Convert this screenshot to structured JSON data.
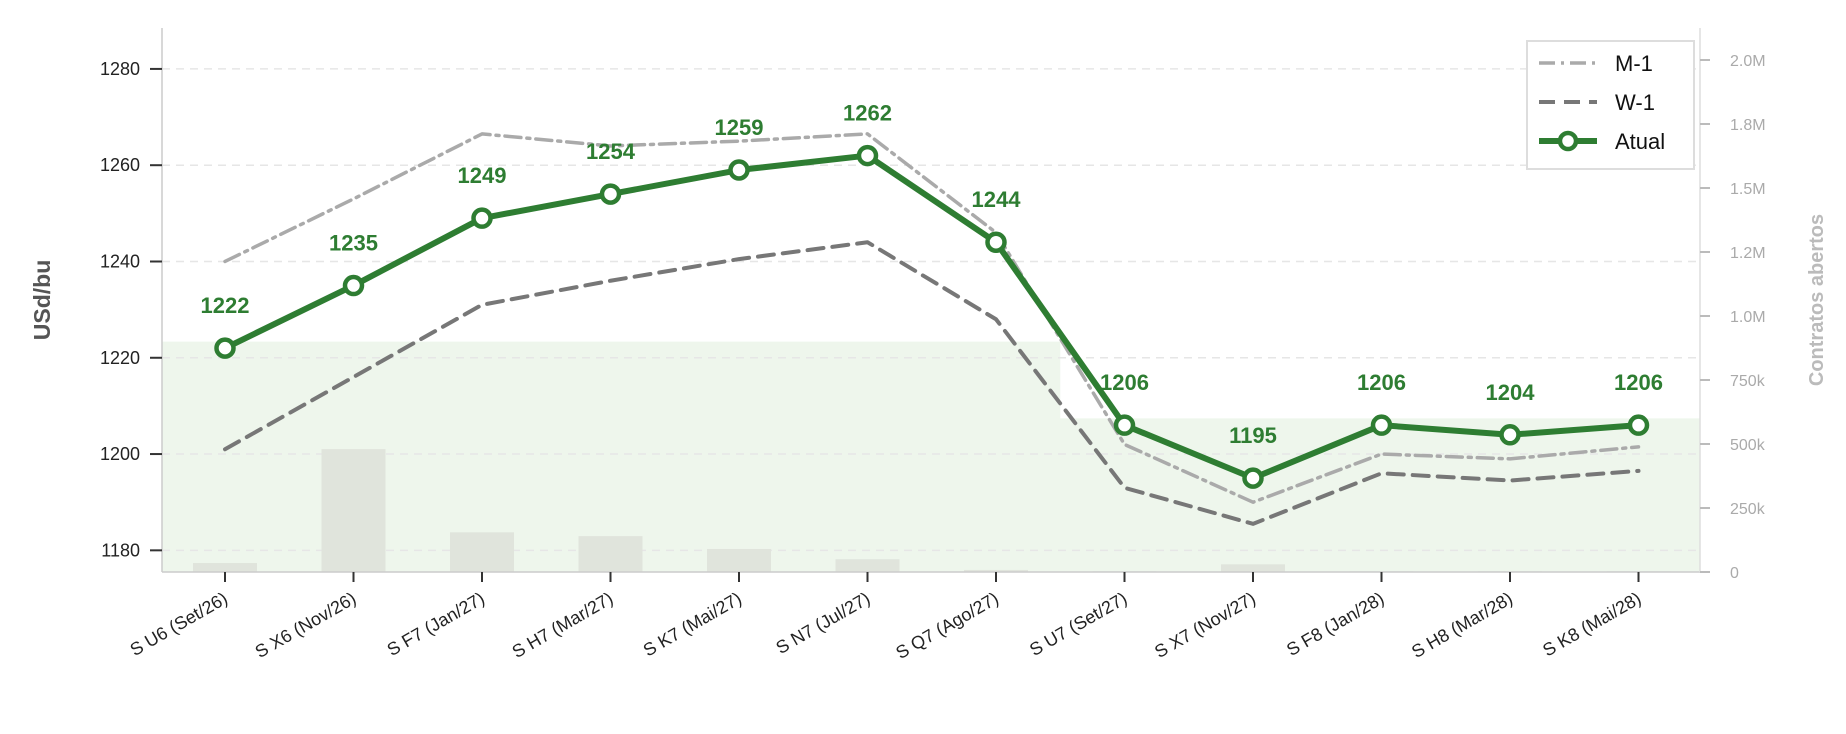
{
  "chart_data": {
    "type": "line",
    "title": "",
    "categories": [
      "S U6 (Set/26)",
      "S X6 (Nov/26)",
      "S F7 (Jan/27)",
      "S H7 (Mar/27)",
      "S K7 (Mai/27)",
      "S N7 (Jul/27)",
      "S Q7 (Ago/27)",
      "S U7 (Set/27)",
      "S X7 (Nov/27)",
      "S F8 (Jan/28)",
      "S H8 (Mar/28)",
      "S K8 (Mai/28)"
    ],
    "ylabel": "USd/bu",
    "y2label": "Contratos abertos",
    "ylim": [
      1175.5,
      1288.5
    ],
    "y2lim": [
      0,
      2125000
    ],
    "yticks": [
      1180,
      1200,
      1220,
      1240,
      1260,
      1280
    ],
    "y2ticks": [
      0,
      250000,
      500000,
      750000,
      1000000,
      1250000,
      1500000,
      1750000,
      2000000
    ],
    "y2ticklabels": [
      "0",
      "250k",
      "500k",
      "750k",
      "1.0M",
      "1.2M",
      "1.5M",
      "1.8M",
      "2.0M"
    ],
    "grid": true,
    "legend_position": "top-right",
    "colors": {
      "atual": "#2e7d32",
      "m1": "#aaaaaa",
      "w1": "#777777",
      "bars": "#e0e4dc",
      "fill": "#eef6ec"
    },
    "series": [
      {
        "name": "M-1",
        "style": "dashdot",
        "values": [
          1240,
          1253,
          1266.5,
          1264,
          1265,
          1266.5,
          1246,
          1202,
          1190,
          1200,
          1199,
          1201.5
        ]
      },
      {
        "name": "W-1",
        "style": "dashed",
        "values": [
          1201,
          1216,
          1231,
          1236,
          1240.5,
          1244,
          1228,
          1193,
          1185.5,
          1196,
          1194.5,
          1196.5
        ]
      },
      {
        "name": "Atual",
        "style": "solid",
        "values": [
          1222,
          1235,
          1249,
          1254,
          1259,
          1262,
          1244,
          1206,
          1195,
          1206,
          1204,
          1206
        ],
        "labels": [
          "1222",
          "1235",
          "1249",
          "1254",
          "1259",
          "1262",
          "1244",
          "1206",
          "1195",
          "1206",
          "1204",
          "1206"
        ]
      }
    ],
    "open_interest": [
      35000,
      480000,
      155000,
      140000,
      90000,
      50000,
      8000,
      3000,
      30000,
      3000,
      3000,
      3000
    ],
    "open_interest_fill_level": [
      900000,
      900000,
      900000,
      900000,
      900000,
      900000,
      900000,
      600000,
      600000,
      600000,
      600000,
      600000
    ]
  }
}
